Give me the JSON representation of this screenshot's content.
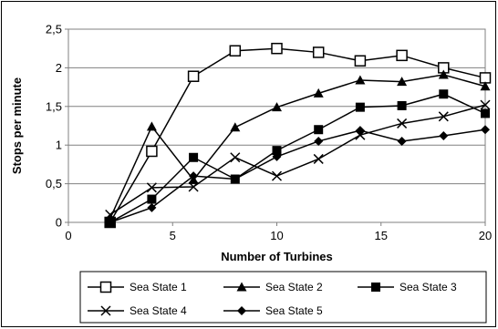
{
  "chart_data": {
    "type": "line",
    "xlabel": "Number of Turbines",
    "ylabel": "Stops per minute",
    "xlim": [
      0,
      20
    ],
    "ylim": [
      0,
      2.5
    ],
    "x_ticks": [
      0,
      5,
      10,
      15,
      20
    ],
    "y_ticks": [
      0,
      0.5,
      1,
      1.5,
      2,
      2.5
    ],
    "x_tick_labels": [
      "0",
      "5",
      "10",
      "15",
      "20"
    ],
    "y_tick_labels": [
      "0",
      "0,5",
      "1",
      "1,5",
      "2",
      "2,5"
    ],
    "grid": "horizontal",
    "legend_position": "bottom",
    "x": [
      2,
      4,
      6,
      8,
      10,
      12,
      14,
      16,
      18,
      20
    ],
    "series": [
      {
        "name": "Sea State 1",
        "marker": "square-open",
        "values": [
          0.0,
          0.92,
          1.89,
          2.22,
          2.25,
          2.2,
          2.09,
          2.16,
          2.0,
          1.87
        ]
      },
      {
        "name": "Sea State 2",
        "marker": "triangle",
        "values": [
          0.05,
          1.24,
          0.55,
          1.23,
          1.49,
          1.67,
          1.84,
          1.82,
          1.91,
          1.76
        ]
      },
      {
        "name": "Sea State 3",
        "marker": "square",
        "values": [
          0.0,
          0.3,
          0.84,
          0.56,
          0.93,
          1.2,
          1.49,
          1.51,
          1.66,
          1.41
        ]
      },
      {
        "name": "Sea State 4",
        "marker": "x",
        "values": [
          0.1,
          0.45,
          0.46,
          0.84,
          0.6,
          0.82,
          1.13,
          1.28,
          1.37,
          1.52
        ]
      },
      {
        "name": "Sea State 5",
        "marker": "diamond",
        "values": [
          0.0,
          0.19,
          0.6,
          0.56,
          0.85,
          1.05,
          1.19,
          1.05,
          1.12,
          1.2
        ]
      }
    ]
  }
}
